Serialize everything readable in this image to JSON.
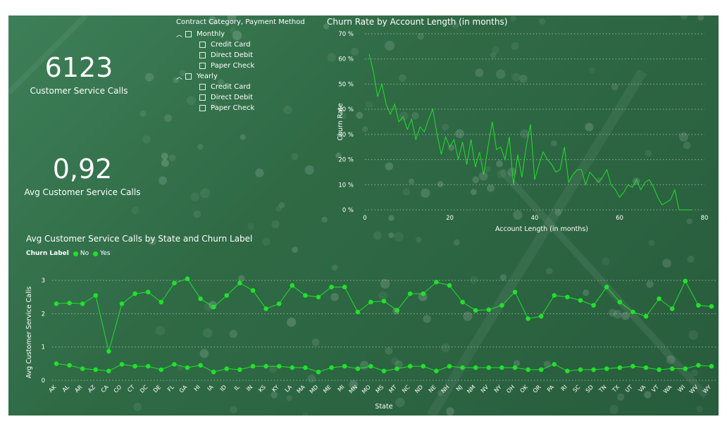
{
  "kpis": [
    {
      "value": "6123",
      "label": "Customer Service Calls"
    },
    {
      "value": "0,92",
      "label": "Avg Customer Service Calls"
    }
  ],
  "slicer": {
    "title": "Contract Category, Payment Method",
    "groups": [
      {
        "label": "Monthly",
        "items": [
          "Credit Card",
          "Direct Debit",
          "Paper Check"
        ]
      },
      {
        "label": "Yearly",
        "items": [
          "Credit Card",
          "Direct Debit",
          "Paper Check"
        ]
      }
    ]
  },
  "colors": {
    "line": "#22e02c",
    "text": "#ffffff",
    "grid": "#d8e6dc"
  },
  "chart_data": [
    {
      "type": "line",
      "title": "Churn Rate by Account Length (in months)",
      "xlabel": "Account Length (in months)",
      "ylabel": "Churn Rate",
      "xlim": [
        0,
        80
      ],
      "ylim": [
        0,
        0.7
      ],
      "xticks": [
        "0",
        "20",
        "40",
        "60",
        "80"
      ],
      "yticks": [
        "0 %",
        "10 %",
        "20 %",
        "30 %",
        "40 %",
        "50 %",
        "60 %",
        "70 %"
      ],
      "series": [
        {
          "x": [
            1,
            2,
            3,
            4,
            5,
            6,
            7,
            8,
            9,
            10,
            11,
            12,
            13,
            14,
            15,
            16,
            17,
            18,
            19,
            20,
            21,
            22,
            23,
            24,
            25,
            26,
            27,
            28,
            29,
            30,
            31,
            32,
            33,
            34,
            35,
            36,
            37,
            38,
            39,
            40,
            41,
            42,
            43,
            44,
            45,
            46,
            47,
            48,
            49,
            50,
            51,
            52,
            53,
            54,
            55,
            56,
            57,
            58,
            59,
            60,
            61,
            62,
            63,
            64,
            65,
            66,
            67,
            68,
            69,
            70,
            71,
            72,
            73,
            74,
            75,
            76,
            77
          ],
          "y": [
            0.62,
            0.55,
            0.45,
            0.5,
            0.42,
            0.38,
            0.42,
            0.35,
            0.37,
            0.32,
            0.36,
            0.28,
            0.33,
            0.31,
            0.36,
            0.4,
            0.3,
            0.22,
            0.29,
            0.25,
            0.28,
            0.2,
            0.27,
            0.18,
            0.28,
            0.17,
            0.23,
            0.14,
            0.25,
            0.35,
            0.24,
            0.25,
            0.2,
            0.29,
            0.1,
            0.22,
            0.13,
            0.25,
            0.34,
            0.12,
            0.18,
            0.23,
            0.2,
            0.18,
            0.15,
            0.16,
            0.25,
            0.11,
            0.14,
            0.16,
            0.16,
            0.1,
            0.15,
            0.13,
            0.11,
            0.13,
            0.16,
            0.1,
            0.08,
            0.05,
            0.07,
            0.1,
            0.09,
            0.12,
            0.08,
            0.11,
            0.12,
            0.09,
            0.05,
            0.02,
            0.03,
            0.04,
            0.08,
            0.0,
            0.0,
            0.0,
            0.0
          ]
        }
      ]
    },
    {
      "type": "line",
      "title": "Avg Customer Service Calls by State and Churn Label",
      "xlabel": "State",
      "ylabel": "Avg Customer Service Calls",
      "legend_title": "Churn Label",
      "legend_position": "top-left",
      "ylim": [
        0,
        3.3
      ],
      "yticks": [
        "0",
        "1",
        "2",
        "3"
      ],
      "categories": [
        "AK",
        "AL",
        "AR",
        "AZ",
        "CA",
        "CO",
        "CT",
        "DC",
        "DE",
        "FL",
        "GA",
        "HI",
        "IA",
        "ID",
        "IL",
        "IN",
        "KS",
        "KY",
        "LA",
        "MA",
        "MD",
        "ME",
        "MI",
        "MN",
        "MO",
        "MS",
        "MT",
        "NC",
        "ND",
        "NE",
        "NH",
        "NJ",
        "NM",
        "NV",
        "NY",
        "OH",
        "OK",
        "OR",
        "PA",
        "RI",
        "SC",
        "SD",
        "TN",
        "TX",
        "UT",
        "VA",
        "VT",
        "WA",
        "WI",
        "WV",
        "WY"
      ],
      "series": [
        {
          "name": "No",
          "values": [
            0.5,
            0.45,
            0.35,
            0.32,
            0.28,
            0.48,
            0.42,
            0.42,
            0.32,
            0.48,
            0.38,
            0.45,
            0.25,
            0.35,
            0.32,
            0.42,
            0.42,
            0.42,
            0.38,
            0.38,
            0.25,
            0.38,
            0.42,
            0.35,
            0.42,
            0.28,
            0.35,
            0.42,
            0.42,
            0.28,
            0.42,
            0.38,
            0.38,
            0.38,
            0.38,
            0.38,
            0.32,
            0.32,
            0.48,
            0.28,
            0.32,
            0.32,
            0.35,
            0.38,
            0.42,
            0.38,
            0.32,
            0.35,
            0.35,
            0.45,
            0.42
          ],
          "color": "#22e02c"
        },
        {
          "name": "Yes",
          "values": [
            2.3,
            2.32,
            2.3,
            2.55,
            0.87,
            2.3,
            2.6,
            2.65,
            2.35,
            2.92,
            3.05,
            2.45,
            2.2,
            2.55,
            2.92,
            2.7,
            2.15,
            2.3,
            2.85,
            2.55,
            2.5,
            2.8,
            2.8,
            2.05,
            2.35,
            2.38,
            2.1,
            2.6,
            2.6,
            2.95,
            2.85,
            2.35,
            2.1,
            2.12,
            2.25,
            2.65,
            1.85,
            1.92,
            2.55,
            2.5,
            2.4,
            2.25,
            2.8,
            2.35,
            2.05,
            1.92,
            2.45,
            2.15,
            2.98,
            2.25,
            2.22
          ],
          "color": "#22e02c"
        }
      ]
    }
  ]
}
